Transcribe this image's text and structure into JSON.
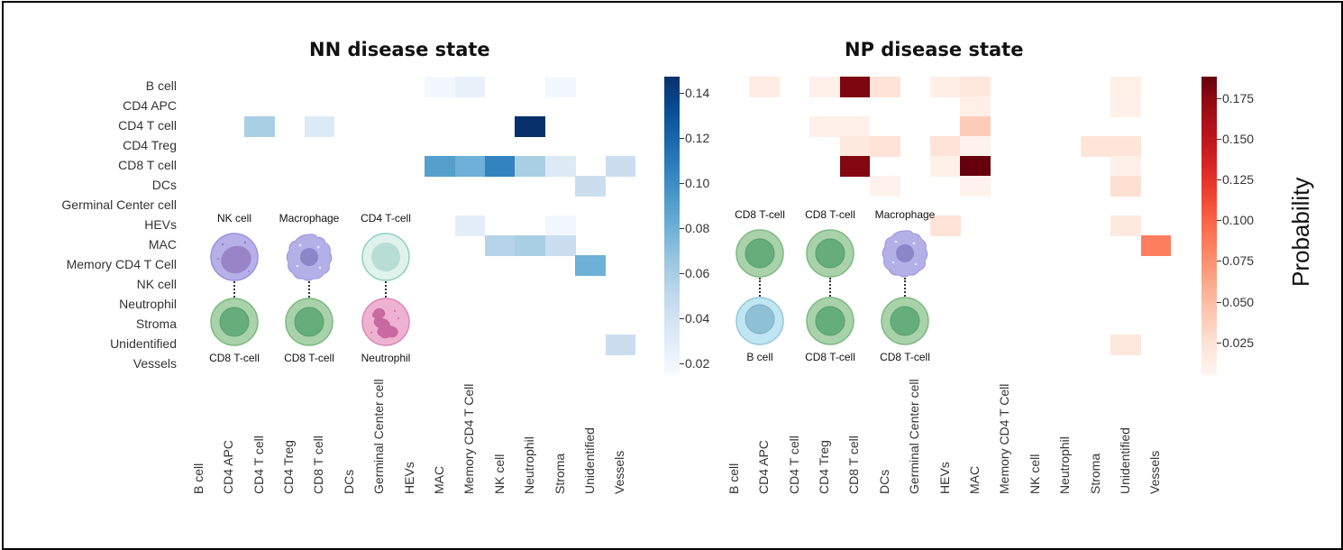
{
  "chart_data": [
    {
      "type": "heatmap",
      "title": "NN disease state",
      "colormap": "Blues",
      "rows": [
        "B cell",
        "CD4 APC",
        "CD4 T cell",
        "CD4 Treg",
        "CD8 T cell",
        "DCs",
        "Germinal Center cell",
        "HEVs",
        "MAC",
        "Memory CD4 T Cell",
        "NK cell",
        "Neutrophil",
        "Stroma",
        "Unidentified",
        "Vessels"
      ],
      "columns": [
        "B cell",
        "CD4 APC",
        "CD4 T cell",
        "CD4 Treg",
        "CD8 T cell",
        "DCs",
        "Germinal Center cell",
        "HEVs",
        "MAC",
        "Memory CD4 T Cell",
        "NK cell",
        "Neutrophil",
        "Stroma",
        "Unidentified",
        "Vessels"
      ],
      "values": [
        [
          null,
          null,
          null,
          null,
          null,
          null,
          null,
          null,
          0.018,
          0.025,
          null,
          null,
          0.018,
          null,
          null
        ],
        [
          null,
          null,
          null,
          null,
          null,
          null,
          null,
          null,
          null,
          null,
          null,
          null,
          null,
          null,
          null
        ],
        [
          null,
          null,
          0.06,
          null,
          0.033,
          null,
          null,
          null,
          null,
          null,
          null,
          0.147,
          null,
          null,
          null
        ],
        [
          null,
          null,
          null,
          null,
          null,
          null,
          null,
          null,
          null,
          null,
          null,
          null,
          null,
          null,
          null
        ],
        [
          null,
          null,
          null,
          null,
          null,
          null,
          null,
          null,
          0.09,
          0.08,
          0.105,
          0.06,
          0.033,
          null,
          0.045
        ],
        [
          null,
          null,
          null,
          null,
          null,
          null,
          null,
          null,
          null,
          null,
          null,
          null,
          null,
          0.045,
          null
        ],
        [
          null,
          null,
          null,
          null,
          null,
          null,
          null,
          null,
          null,
          null,
          null,
          null,
          null,
          null,
          null
        ],
        [
          null,
          null,
          null,
          null,
          null,
          null,
          null,
          null,
          null,
          0.028,
          null,
          null,
          0.018,
          null,
          null
        ],
        [
          null,
          null,
          null,
          null,
          null,
          null,
          null,
          null,
          null,
          null,
          0.055,
          0.06,
          0.045,
          null,
          null
        ],
        [
          null,
          null,
          null,
          null,
          null,
          null,
          null,
          null,
          null,
          null,
          null,
          null,
          null,
          0.08,
          null
        ],
        [
          null,
          null,
          null,
          null,
          null,
          null,
          null,
          null,
          null,
          null,
          null,
          null,
          null,
          null,
          null
        ],
        [
          null,
          null,
          null,
          null,
          null,
          null,
          null,
          null,
          null,
          null,
          null,
          null,
          null,
          null,
          null
        ],
        [
          null,
          null,
          null,
          null,
          null,
          null,
          null,
          null,
          null,
          null,
          null,
          null,
          null,
          null,
          null
        ],
        [
          null,
          null,
          null,
          null,
          null,
          null,
          null,
          null,
          null,
          null,
          null,
          null,
          null,
          null,
          0.045
        ],
        [
          null,
          null,
          null,
          null,
          null,
          null,
          null,
          null,
          null,
          null,
          null,
          null,
          null,
          null,
          null
        ]
      ],
      "colorbar": {
        "range": [
          0.015,
          0.147
        ],
        "ticks": [
          "0.02",
          "0.04",
          "0.06",
          "0.08",
          "0.10",
          "0.12",
          "0.14"
        ],
        "tick_values": [
          0.02,
          0.04,
          0.06,
          0.08,
          0.1,
          0.12,
          0.14
        ]
      },
      "annotations": [
        {
          "top": "NK cell",
          "bottom": "CD8 T-cell"
        },
        {
          "top": "Macrophage",
          "bottom": "CD8 T-cell"
        },
        {
          "top": "CD4 T-cell",
          "bottom": "Neutrophil"
        }
      ]
    },
    {
      "type": "heatmap",
      "title": "NP disease state",
      "colormap": "Reds",
      "rows": [
        "B cell",
        "CD4 APC",
        "CD4 T cell",
        "CD4 Treg",
        "CD8 T cell",
        "DCs",
        "Germinal Center cell",
        "HEVs",
        "MAC",
        "Memory CD4 T Cell",
        "NK cell",
        "Neutrophil",
        "Stroma",
        "Unidentified",
        "Vessels"
      ],
      "columns": [
        "B cell",
        "CD4 APC",
        "CD4 T cell",
        "CD4 Treg",
        "CD8 T cell",
        "DCs",
        "Germinal Center cell",
        "HEVs",
        "MAC",
        "Memory CD4 T Cell",
        "NK cell",
        "Neutrophil",
        "Stroma",
        "Unidentified",
        "Vessels"
      ],
      "values": [
        [
          null,
          0.015,
          null,
          0.01,
          0.18,
          0.025,
          null,
          0.012,
          0.02,
          null,
          null,
          null,
          null,
          0.012,
          null
        ],
        [
          null,
          null,
          null,
          null,
          null,
          null,
          null,
          null,
          0.012,
          null,
          null,
          null,
          null,
          0.01,
          null
        ],
        [
          null,
          null,
          null,
          0.01,
          0.01,
          null,
          null,
          null,
          0.04,
          null,
          null,
          null,
          null,
          null,
          null
        ],
        [
          null,
          null,
          null,
          null,
          0.018,
          0.025,
          null,
          0.025,
          0.008,
          null,
          null,
          null,
          0.022,
          0.022,
          null
        ],
        [
          null,
          null,
          null,
          null,
          0.178,
          null,
          null,
          0.01,
          0.188,
          null,
          null,
          null,
          null,
          0.01,
          null
        ],
        [
          null,
          null,
          null,
          null,
          null,
          0.008,
          null,
          null,
          0.008,
          null,
          null,
          null,
          null,
          0.028,
          null
        ],
        [
          null,
          null,
          null,
          null,
          null,
          null,
          null,
          null,
          null,
          null,
          null,
          null,
          null,
          null,
          null
        ],
        [
          null,
          null,
          null,
          null,
          null,
          null,
          null,
          0.025,
          null,
          null,
          null,
          null,
          null,
          0.018,
          null
        ],
        [
          null,
          null,
          null,
          null,
          null,
          null,
          null,
          null,
          null,
          null,
          null,
          null,
          null,
          null,
          0.085
        ],
        [
          null,
          null,
          null,
          null,
          null,
          null,
          null,
          null,
          null,
          null,
          null,
          null,
          null,
          null,
          null
        ],
        [
          null,
          null,
          null,
          null,
          null,
          null,
          null,
          null,
          null,
          null,
          null,
          null,
          null,
          null,
          null
        ],
        [
          null,
          null,
          null,
          null,
          null,
          null,
          null,
          null,
          null,
          null,
          null,
          null,
          null,
          null,
          null
        ],
        [
          null,
          null,
          null,
          null,
          null,
          null,
          null,
          null,
          null,
          null,
          null,
          null,
          null,
          null,
          null
        ],
        [
          null,
          null,
          null,
          null,
          null,
          null,
          null,
          null,
          null,
          null,
          null,
          null,
          null,
          0.02,
          null
        ],
        [
          null,
          null,
          null,
          null,
          null,
          null,
          null,
          null,
          null,
          null,
          null,
          null,
          null,
          null,
          null
        ]
      ],
      "colorbar": {
        "range": [
          0.005,
          0.188
        ],
        "label": "Probability",
        "ticks": [
          "0.025",
          "0.050",
          "0.075",
          "0.100",
          "0.125",
          "0.150",
          "0.175"
        ],
        "tick_values": [
          0.025,
          0.05,
          0.075,
          0.1,
          0.125,
          0.15,
          0.175
        ]
      },
      "annotations": [
        {
          "top": "CD8 T-cell",
          "bottom": "B cell"
        },
        {
          "top": "CD8 T-cell",
          "bottom": "CD8 T-cell"
        },
        {
          "top": "Macrophage",
          "bottom": "CD8 T-cell"
        }
      ]
    }
  ]
}
